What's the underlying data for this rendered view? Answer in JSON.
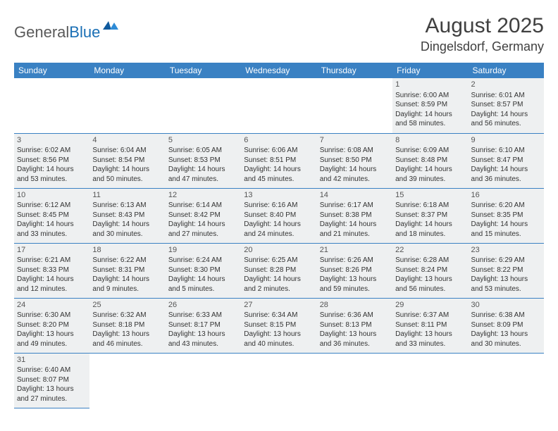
{
  "logo": {
    "text_general": "General",
    "text_blue": "Blue"
  },
  "title": "August 2025",
  "location": "Dingelsdorf, Germany",
  "header_bg": "#3a81c3",
  "cell_bg": "#eef0f1",
  "day_headers": [
    "Sunday",
    "Monday",
    "Tuesday",
    "Wednesday",
    "Thursday",
    "Friday",
    "Saturday"
  ],
  "weeks": [
    [
      null,
      null,
      null,
      null,
      null,
      {
        "n": "1",
        "sr": "Sunrise: 6:00 AM",
        "ss": "Sunset: 8:59 PM",
        "dl": "Daylight: 14 hours and 58 minutes."
      },
      {
        "n": "2",
        "sr": "Sunrise: 6:01 AM",
        "ss": "Sunset: 8:57 PM",
        "dl": "Daylight: 14 hours and 56 minutes."
      }
    ],
    [
      {
        "n": "3",
        "sr": "Sunrise: 6:02 AM",
        "ss": "Sunset: 8:56 PM",
        "dl": "Daylight: 14 hours and 53 minutes."
      },
      {
        "n": "4",
        "sr": "Sunrise: 6:04 AM",
        "ss": "Sunset: 8:54 PM",
        "dl": "Daylight: 14 hours and 50 minutes."
      },
      {
        "n": "5",
        "sr": "Sunrise: 6:05 AM",
        "ss": "Sunset: 8:53 PM",
        "dl": "Daylight: 14 hours and 47 minutes."
      },
      {
        "n": "6",
        "sr": "Sunrise: 6:06 AM",
        "ss": "Sunset: 8:51 PM",
        "dl": "Daylight: 14 hours and 45 minutes."
      },
      {
        "n": "7",
        "sr": "Sunrise: 6:08 AM",
        "ss": "Sunset: 8:50 PM",
        "dl": "Daylight: 14 hours and 42 minutes."
      },
      {
        "n": "8",
        "sr": "Sunrise: 6:09 AM",
        "ss": "Sunset: 8:48 PM",
        "dl": "Daylight: 14 hours and 39 minutes."
      },
      {
        "n": "9",
        "sr": "Sunrise: 6:10 AM",
        "ss": "Sunset: 8:47 PM",
        "dl": "Daylight: 14 hours and 36 minutes."
      }
    ],
    [
      {
        "n": "10",
        "sr": "Sunrise: 6:12 AM",
        "ss": "Sunset: 8:45 PM",
        "dl": "Daylight: 14 hours and 33 minutes."
      },
      {
        "n": "11",
        "sr": "Sunrise: 6:13 AM",
        "ss": "Sunset: 8:43 PM",
        "dl": "Daylight: 14 hours and 30 minutes."
      },
      {
        "n": "12",
        "sr": "Sunrise: 6:14 AM",
        "ss": "Sunset: 8:42 PM",
        "dl": "Daylight: 14 hours and 27 minutes."
      },
      {
        "n": "13",
        "sr": "Sunrise: 6:16 AM",
        "ss": "Sunset: 8:40 PM",
        "dl": "Daylight: 14 hours and 24 minutes."
      },
      {
        "n": "14",
        "sr": "Sunrise: 6:17 AM",
        "ss": "Sunset: 8:38 PM",
        "dl": "Daylight: 14 hours and 21 minutes."
      },
      {
        "n": "15",
        "sr": "Sunrise: 6:18 AM",
        "ss": "Sunset: 8:37 PM",
        "dl": "Daylight: 14 hours and 18 minutes."
      },
      {
        "n": "16",
        "sr": "Sunrise: 6:20 AM",
        "ss": "Sunset: 8:35 PM",
        "dl": "Daylight: 14 hours and 15 minutes."
      }
    ],
    [
      {
        "n": "17",
        "sr": "Sunrise: 6:21 AM",
        "ss": "Sunset: 8:33 PM",
        "dl": "Daylight: 14 hours and 12 minutes."
      },
      {
        "n": "18",
        "sr": "Sunrise: 6:22 AM",
        "ss": "Sunset: 8:31 PM",
        "dl": "Daylight: 14 hours and 9 minutes."
      },
      {
        "n": "19",
        "sr": "Sunrise: 6:24 AM",
        "ss": "Sunset: 8:30 PM",
        "dl": "Daylight: 14 hours and 5 minutes."
      },
      {
        "n": "20",
        "sr": "Sunrise: 6:25 AM",
        "ss": "Sunset: 8:28 PM",
        "dl": "Daylight: 14 hours and 2 minutes."
      },
      {
        "n": "21",
        "sr": "Sunrise: 6:26 AM",
        "ss": "Sunset: 8:26 PM",
        "dl": "Daylight: 13 hours and 59 minutes."
      },
      {
        "n": "22",
        "sr": "Sunrise: 6:28 AM",
        "ss": "Sunset: 8:24 PM",
        "dl": "Daylight: 13 hours and 56 minutes."
      },
      {
        "n": "23",
        "sr": "Sunrise: 6:29 AM",
        "ss": "Sunset: 8:22 PM",
        "dl": "Daylight: 13 hours and 53 minutes."
      }
    ],
    [
      {
        "n": "24",
        "sr": "Sunrise: 6:30 AM",
        "ss": "Sunset: 8:20 PM",
        "dl": "Daylight: 13 hours and 49 minutes."
      },
      {
        "n": "25",
        "sr": "Sunrise: 6:32 AM",
        "ss": "Sunset: 8:18 PM",
        "dl": "Daylight: 13 hours and 46 minutes."
      },
      {
        "n": "26",
        "sr": "Sunrise: 6:33 AM",
        "ss": "Sunset: 8:17 PM",
        "dl": "Daylight: 13 hours and 43 minutes."
      },
      {
        "n": "27",
        "sr": "Sunrise: 6:34 AM",
        "ss": "Sunset: 8:15 PM",
        "dl": "Daylight: 13 hours and 40 minutes."
      },
      {
        "n": "28",
        "sr": "Sunrise: 6:36 AM",
        "ss": "Sunset: 8:13 PM",
        "dl": "Daylight: 13 hours and 36 minutes."
      },
      {
        "n": "29",
        "sr": "Sunrise: 6:37 AM",
        "ss": "Sunset: 8:11 PM",
        "dl": "Daylight: 13 hours and 33 minutes."
      },
      {
        "n": "30",
        "sr": "Sunrise: 6:38 AM",
        "ss": "Sunset: 8:09 PM",
        "dl": "Daylight: 13 hours and 30 minutes."
      }
    ],
    [
      {
        "n": "31",
        "sr": "Sunrise: 6:40 AM",
        "ss": "Sunset: 8:07 PM",
        "dl": "Daylight: 13 hours and 27 minutes."
      },
      null,
      null,
      null,
      null,
      null,
      null
    ]
  ]
}
